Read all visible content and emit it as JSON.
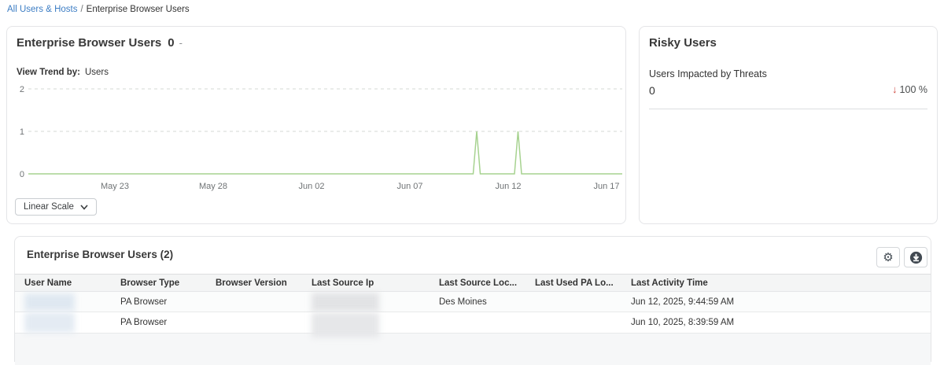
{
  "colors": {
    "link_blue": "#3c7dc4",
    "chart_green": "#a6d28f",
    "delta_red": "#cf4b42"
  },
  "breadcrumb": {
    "link": "All Users & Hosts",
    "separator": "/",
    "current": "Enterprise Browser Users"
  },
  "trend_card": {
    "title": "Enterprise Browser Users",
    "title_value": "0",
    "title_suffix": "-",
    "view_trend_label": "View Trend by:",
    "view_trend_value": "Users",
    "scale_button_label": "Linear Scale"
  },
  "risky_card": {
    "title": "Risky Users",
    "metric_label": "Users Impacted by Threats",
    "metric_value": "0",
    "delta_arrow": "↓",
    "delta_value": "100 %"
  },
  "table_card": {
    "title": "Enterprise Browser Users (2)",
    "toolbar_icons": [
      "gear-icon",
      "download-icon"
    ],
    "columns": [
      "User Name",
      "Browser Type",
      "Browser Version",
      "Last Source Ip",
      "Last Source Loc...",
      "Last Used PA Lo...",
      "Last Activity Time"
    ],
    "rows": [
      {
        "user_name_redacted": true,
        "browser_type": "PA Browser",
        "browser_version": "",
        "last_source_ip_redacted": true,
        "last_source_location": "Des Moines",
        "last_used_pa_location": "",
        "last_activity_time": "Jun 12, 2025, 9:44:59 AM"
      },
      {
        "user_name_redacted": true,
        "browser_type": "PA Browser",
        "browser_version": "",
        "last_source_ip_redacted": true,
        "last_source_location": "",
        "last_used_pa_location": "",
        "last_activity_time": "Jun 10, 2025, 8:39:59 AM"
      }
    ]
  },
  "chart_data": {
    "type": "line",
    "title": "Enterprise Browser Users trend",
    "scale": "linear",
    "grid": "horizontal-dashed",
    "legend": "none",
    "ylim": [
      0,
      2
    ],
    "y_ticks": [
      0,
      1,
      2
    ],
    "x_domain_days": [
      0,
      29.8
    ],
    "x_ticks": [
      {
        "label": "May 23",
        "day": 4
      },
      {
        "label": "May 28",
        "day": 9
      },
      {
        "label": "Jun 02",
        "day": 14
      },
      {
        "label": "Jun 07",
        "day": 19
      },
      {
        "label": "Jun 12",
        "day": 24
      },
      {
        "label": "Jun 17",
        "day": 29
      }
    ],
    "series": [
      {
        "name": "Users",
        "color": "#a6d28f",
        "baseline_value": 0,
        "spikes": [
          {
            "date": "Jun 10",
            "day": 22.4,
            "value": 1
          },
          {
            "date": "Jun 12",
            "day": 24.5,
            "value": 1
          }
        ]
      }
    ]
  }
}
